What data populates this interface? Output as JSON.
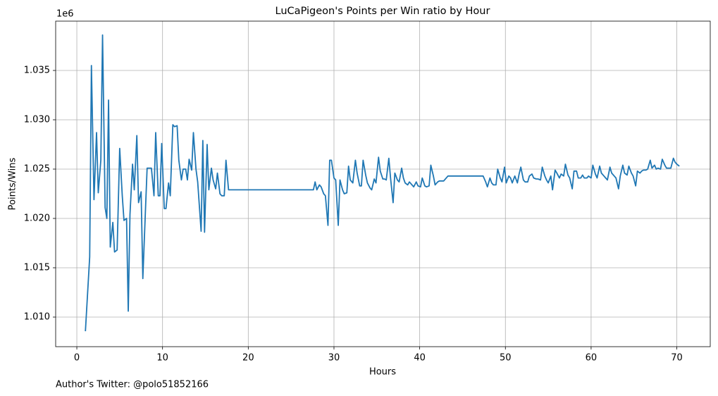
{
  "chart_data": {
    "type": "line",
    "title": "LuCaPigeon's Points per Win ratio by Hour",
    "xlabel": "Hours",
    "ylabel": "Points/Wins",
    "y_offset_label": "1e6",
    "footer": "Author's Twitter: @polo51852166",
    "color": "#1f77b4",
    "grid": true,
    "xlim": [
      -2.47,
      73.9
    ],
    "ylim": [
      1.007,
      1.04
    ],
    "xticks": [
      0,
      10,
      20,
      30,
      40,
      50,
      60,
      70
    ],
    "yticks": [
      {
        "value": 1.01,
        "label": "1.010"
      },
      {
        "value": 1.015,
        "label": "1.015"
      },
      {
        "value": 1.02,
        "label": "1.020"
      },
      {
        "value": 1.025,
        "label": "1.025"
      },
      {
        "value": 1.03,
        "label": "1.030"
      },
      {
        "value": 1.035,
        "label": "1.035"
      }
    ],
    "x": [
      1.0,
      1.5,
      1.7,
      2.0,
      2.3,
      2.5,
      2.8,
      3.0,
      3.3,
      3.5,
      3.7,
      3.9,
      4.2,
      4.4,
      4.7,
      5.0,
      5.3,
      5.5,
      5.8,
      6.0,
      6.2,
      6.5,
      6.7,
      7.0,
      7.2,
      7.5,
      7.7,
      8.0,
      8.2,
      8.7,
      9.0,
      9.2,
      9.5,
      9.7,
      9.9,
      10.2,
      10.4,
      10.7,
      10.9,
      11.2,
      11.4,
      11.7,
      11.9,
      12.2,
      12.4,
      12.7,
      12.9,
      13.1,
      13.4,
      13.6,
      13.9,
      14.1,
      14.5,
      14.7,
      14.9,
      15.2,
      15.4,
      15.7,
      15.9,
      16.2,
      16.4,
      16.7,
      16.9,
      17.2,
      17.4,
      17.7,
      27.6,
      27.8,
      28.0,
      28.3,
      28.5,
      28.8,
      29.0,
      29.3,
      29.5,
      29.7,
      30.0,
      30.2,
      30.5,
      30.7,
      31.0,
      31.2,
      31.5,
      31.7,
      31.9,
      32.2,
      32.5,
      32.7,
      33.0,
      33.2,
      33.4,
      33.7,
      33.9,
      34.2,
      34.4,
      34.7,
      34.9,
      35.2,
      35.4,
      35.7,
      35.9,
      36.1,
      36.4,
      36.6,
      36.9,
      37.1,
      37.4,
      37.6,
      37.9,
      38.1,
      38.3,
      38.6,
      38.8,
      39.1,
      39.3,
      39.6,
      39.8,
      40.1,
      40.3,
      40.6,
      40.8,
      41.1,
      41.3,
      41.6,
      41.8,
      42.1,
      42.3,
      42.8,
      43.3,
      47.4,
      47.7,
      47.9,
      48.2,
      48.4,
      48.6,
      48.9,
      49.1,
      49.4,
      49.6,
      49.9,
      50.1,
      50.4,
      50.6,
      50.8,
      51.1,
      51.4,
      51.6,
      51.8,
      52.1,
      52.3,
      52.6,
      52.8,
      53.1,
      53.3,
      53.6,
      53.8,
      54.1,
      54.3,
      54.6,
      54.8,
      55.0,
      55.3,
      55.5,
      55.8,
      56.0,
      56.3,
      56.5,
      56.8,
      57.0,
      57.3,
      57.5,
      57.8,
      58.0,
      58.3,
      58.5,
      58.8,
      59.0,
      59.2,
      59.5,
      59.7,
      60.0,
      60.2,
      60.5,
      60.7,
      61.0,
      61.2,
      61.5,
      61.7,
      61.9,
      62.2,
      62.4,
      62.7,
      62.9,
      63.2,
      63.4,
      63.7,
      63.9,
      64.2,
      64.4,
      64.7,
      64.9,
      65.2,
      65.4,
      65.7,
      65.9,
      66.1,
      66.4,
      66.6,
      66.9,
      67.1,
      67.4,
      67.6,
      67.8,
      68.1,
      68.3,
      68.6,
      68.8,
      69.1,
      69.3,
      69.6,
      69.8,
      70.0,
      70.3
    ],
    "values": [
      1.00857,
      1.0161,
      1.0355,
      1.0219,
      1.0287,
      1.0226,
      1.0259,
      1.0386,
      1.0211,
      1.02,
      1.032,
      1.0171,
      1.0196,
      1.0166,
      1.0168,
      1.0271,
      1.0223,
      1.0198,
      1.02,
      1.0106,
      1.0204,
      1.0255,
      1.0229,
      1.0284,
      1.0216,
      1.0227,
      1.0139,
      1.0207,
      1.0251,
      1.0251,
      1.0223,
      1.0287,
      1.0223,
      1.0223,
      1.0276,
      1.021,
      1.021,
      1.0236,
      1.0223,
      1.0295,
      1.0293,
      1.0294,
      1.0259,
      1.0239,
      1.025,
      1.025,
      1.0239,
      1.026,
      1.0249,
      1.0287,
      1.025,
      1.0237,
      1.0187,
      1.0279,
      1.0186,
      1.0275,
      1.0229,
      1.0251,
      1.0239,
      1.023,
      1.0246,
      1.0225,
      1.0223,
      1.0223,
      1.0259,
      1.0229,
      1.0229,
      1.0237,
      1.0229,
      1.0234,
      1.0232,
      1.0225,
      1.0223,
      1.0193,
      1.0259,
      1.0259,
      1.0241,
      1.0239,
      1.0193,
      1.0239,
      1.0229,
      1.0225,
      1.0226,
      1.0253,
      1.0239,
      1.0236,
      1.0259,
      1.0246,
      1.0233,
      1.0233,
      1.0259,
      1.0244,
      1.0236,
      1.0231,
      1.0229,
      1.024,
      1.0236,
      1.0262,
      1.0248,
      1.024,
      1.024,
      1.0239,
      1.0261,
      1.0241,
      1.0216,
      1.0246,
      1.0239,
      1.0237,
      1.0251,
      1.0241,
      1.0236,
      1.0234,
      1.0237,
      1.0234,
      1.0232,
      1.0237,
      1.0233,
      1.0232,
      1.0241,
      1.0233,
      1.0232,
      1.0233,
      1.0254,
      1.0243,
      1.0234,
      1.0237,
      1.0238,
      1.0238,
      1.0243,
      1.0243,
      1.0237,
      1.0232,
      1.0241,
      1.0236,
      1.0234,
      1.0234,
      1.025,
      1.0241,
      1.0237,
      1.0252,
      1.0236,
      1.0243,
      1.0241,
      1.0236,
      1.0243,
      1.0236,
      1.0245,
      1.0252,
      1.0239,
      1.0237,
      1.0237,
      1.0243,
      1.0245,
      1.0241,
      1.024,
      1.024,
      1.0239,
      1.0252,
      1.0243,
      1.0239,
      1.0236,
      1.0243,
      1.0229,
      1.0249,
      1.0246,
      1.0241,
      1.0245,
      1.0243,
      1.0255,
      1.0244,
      1.0241,
      1.023,
      1.0248,
      1.0248,
      1.0241,
      1.0241,
      1.0244,
      1.0241,
      1.0241,
      1.0243,
      1.0241,
      1.0254,
      1.0245,
      1.0241,
      1.0253,
      1.0246,
      1.0243,
      1.0241,
      1.0239,
      1.0252,
      1.0246,
      1.0243,
      1.0241,
      1.023,
      1.0243,
      1.0254,
      1.0246,
      1.0244,
      1.0253,
      1.0246,
      1.0243,
      1.0233,
      1.0248,
      1.0246,
      1.0248,
      1.0249,
      1.0249,
      1.025,
      1.0259,
      1.0251,
      1.0254,
      1.025,
      1.0251,
      1.025,
      1.026,
      1.0254,
      1.0251,
      1.0251,
      1.0251,
      1.0261,
      1.0257,
      1.0255,
      1.0253
    ]
  }
}
